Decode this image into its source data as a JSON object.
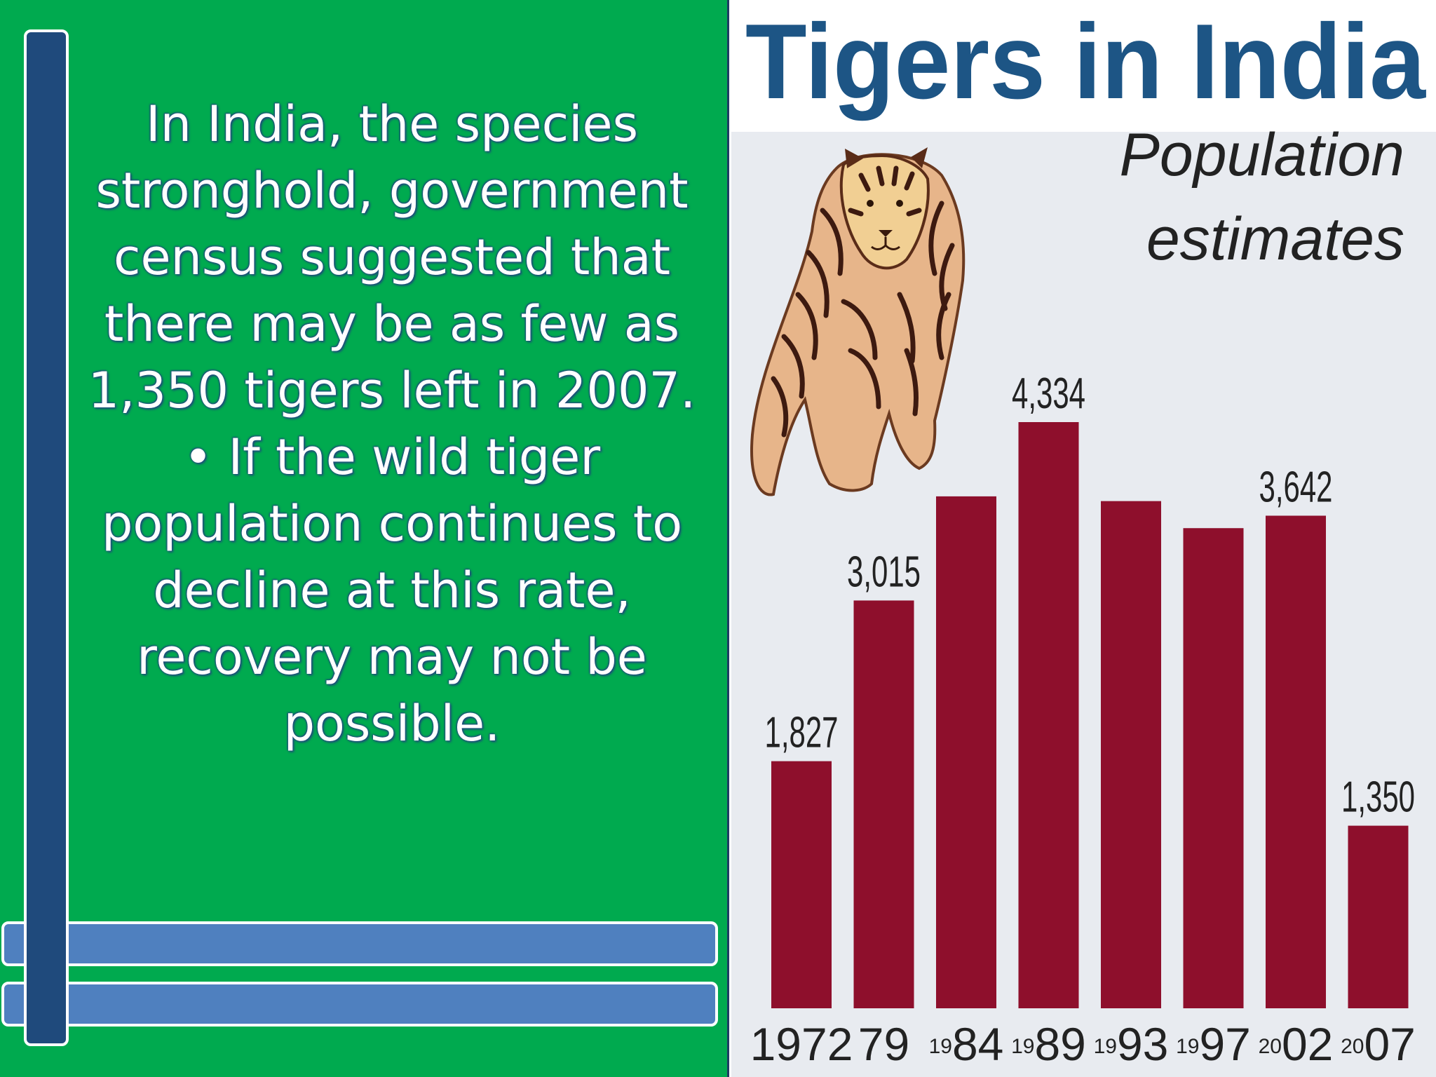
{
  "slide": {
    "paragraph": "In India, the species stronghold, government census suggested that there may be as few as 1,350 tigers left in 2007.",
    "bullet_marker": "•",
    "bullet": "If the wild tiger population continues to decline at this rate, recovery may not be possible."
  },
  "colors": {
    "left_background": "#00aa4f",
    "accent_bar": "#1f4a7c",
    "stripe_bar": "#4f80bf",
    "chart_background": "#e8ebf0",
    "bar_color": "#8e0f2c",
    "title_color": "#1d5585"
  },
  "illustration": {
    "icon": "tiger-icon"
  },
  "chart_data": {
    "type": "bar",
    "title": "Tigers in India",
    "subtitle": "Population estimates",
    "xlabel": "",
    "ylabel": "",
    "categories": [
      {
        "small": "",
        "big": "1972"
      },
      {
        "small": "",
        "big": "79"
      },
      {
        "small": "19",
        "big": "84"
      },
      {
        "small": "19",
        "big": "89"
      },
      {
        "small": "19",
        "big": "93"
      },
      {
        "small": "19",
        "big": "97"
      },
      {
        "small": "20",
        "big": "02"
      },
      {
        "small": "20",
        "big": "07"
      }
    ],
    "values": [
      1827,
      3015,
      3785,
      4334,
      3750,
      3550,
      3642,
      1350
    ],
    "data_labels": [
      "1,827",
      "3,015",
      "",
      "4,334",
      "",
      "",
      "3,642",
      "1,350"
    ],
    "ylim": [
      0,
      4500
    ],
    "grid": false,
    "legend": "none"
  }
}
